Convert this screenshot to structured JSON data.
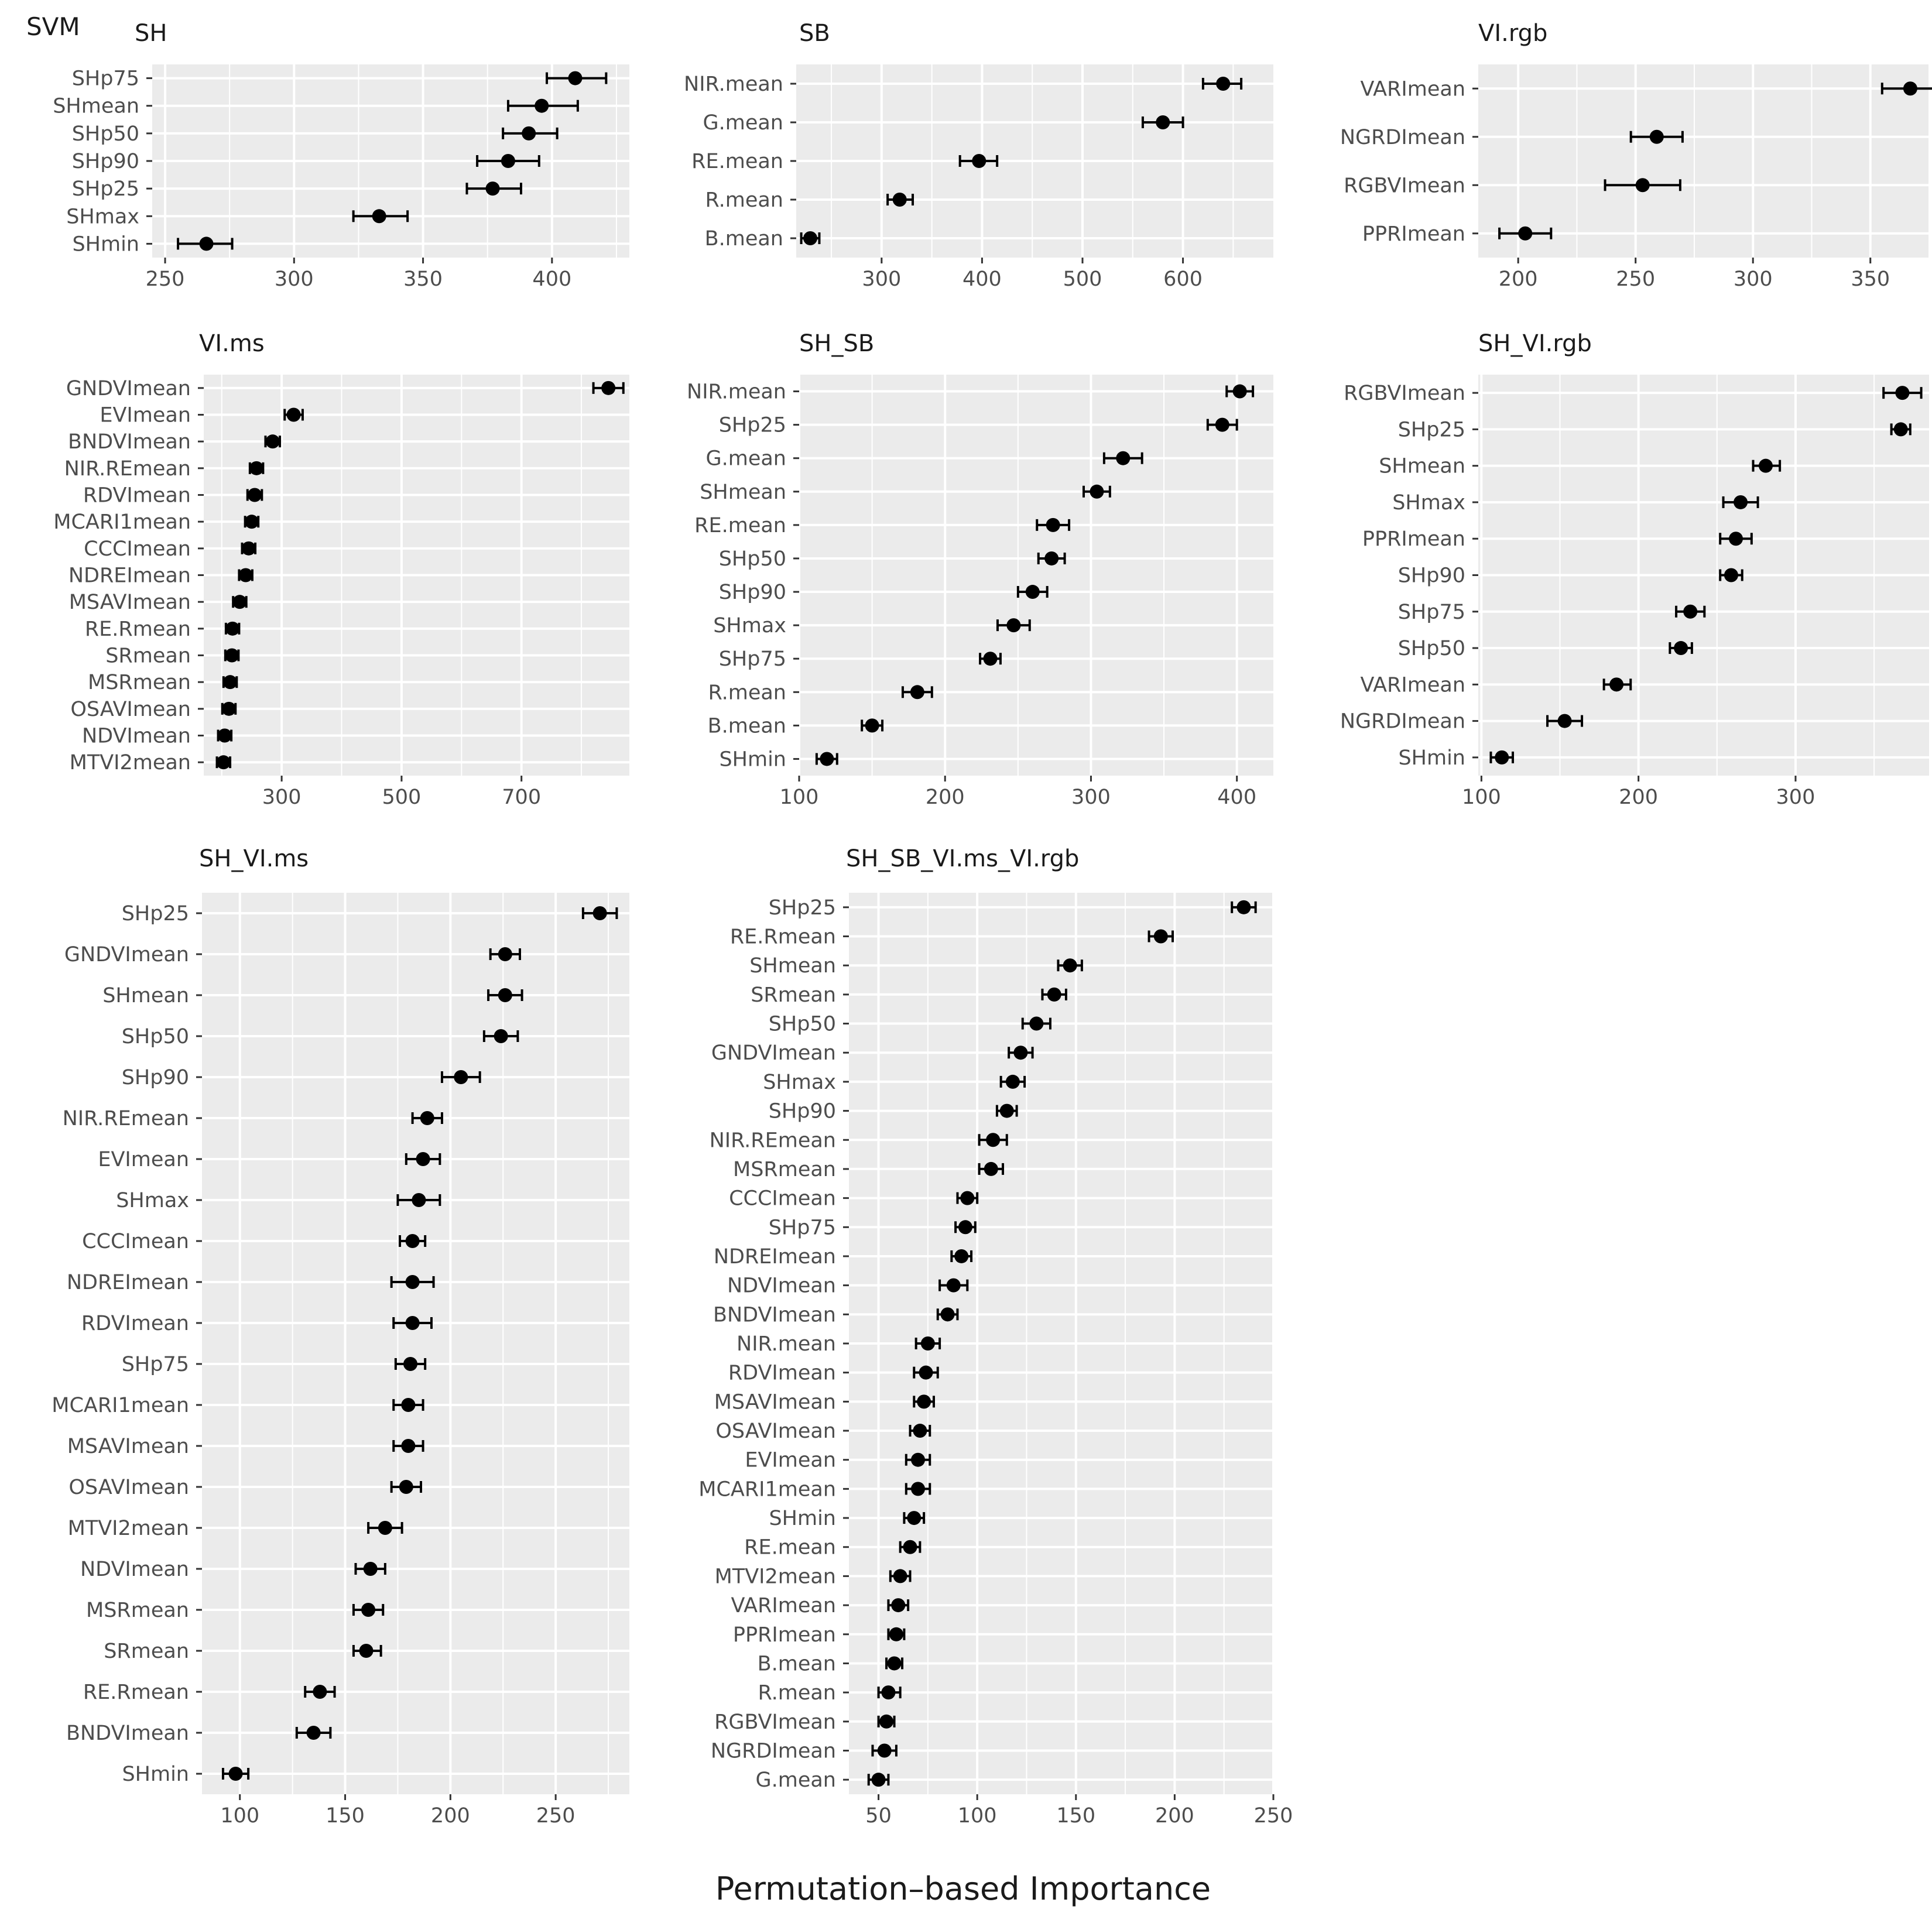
{
  "figure": {
    "model_label": "SVM",
    "xlabel": "Permutation–based Importance"
  },
  "colors": {
    "panel_bg": "#ebebeb",
    "grid": "#ffffff",
    "point": "#000000",
    "axis_text": "#4d4d4d",
    "title_text": "#1a1a1a"
  },
  "chart_data": [
    {
      "type": "scatter",
      "title": "SH",
      "xlim": [
        245,
        430
      ],
      "xticks": [
        250,
        300,
        350,
        400
      ],
      "minor_grid": true,
      "categories": [
        "SHp75",
        "SHmean",
        "SHp50",
        "SHp90",
        "SHp25",
        "SHmax",
        "SHmin"
      ],
      "values": [
        409,
        396,
        391,
        383,
        377,
        333,
        266
      ],
      "error_low": [
        398,
        383,
        381,
        371,
        367,
        323,
        255
      ],
      "error_high": [
        421,
        410,
        402,
        395,
        388,
        344,
        276
      ]
    },
    {
      "type": "scatter",
      "title": "SB",
      "xlim": [
        215,
        690
      ],
      "xticks": [
        300,
        400,
        500,
        600
      ],
      "minor_grid": true,
      "categories": [
        "NIR.mean",
        "G.mean",
        "RE.mean",
        "R.mean",
        "B.mean"
      ],
      "values": [
        640,
        580,
        397,
        318,
        229
      ],
      "error_low": [
        620,
        560,
        378,
        306,
        220
      ],
      "error_high": [
        658,
        600,
        415,
        331,
        238
      ]
    },
    {
      "type": "scatter",
      "title": "VI.rgb",
      "xlim": [
        183,
        375
      ],
      "xticks": [
        200,
        250,
        300,
        350
      ],
      "minor_grid": true,
      "categories": [
        "VARImean",
        "NGRDImean",
        "RGBVImean",
        "PPRImean"
      ],
      "values": [
        367,
        259,
        253,
        203
      ],
      "error_low": [
        355,
        248,
        237,
        192
      ],
      "error_high": [
        379,
        270,
        269,
        214
      ]
    },
    {
      "type": "scatter",
      "title": "VI.ms",
      "xlim": [
        170,
        880
      ],
      "xticks": [
        300,
        500,
        700
      ],
      "minor_grid": true,
      "categories": [
        "GNDVImean",
        "EVImean",
        "BNDVImean",
        "NIR.REmean",
        "RDVImean",
        "MCARI1mean",
        "CCCImean",
        "NDREImean",
        "MSAVImean",
        "RE.Rmean",
        "SRmean",
        "MSRmean",
        "OSAVImean",
        "NDVImean",
        "MTVI2mean"
      ],
      "values": [
        845,
        320,
        285,
        258,
        255,
        250,
        245,
        240,
        230,
        218,
        217,
        214,
        212,
        205,
        203
      ],
      "error_low": [
        820,
        305,
        273,
        247,
        243,
        239,
        234,
        229,
        219,
        207,
        206,
        203,
        201,
        194,
        192
      ],
      "error_high": [
        870,
        335,
        297,
        269,
        267,
        261,
        256,
        251,
        241,
        229,
        228,
        225,
        223,
        216,
        214
      ]
    },
    {
      "type": "scatter",
      "title": "SH_SB",
      "xlim": [
        100,
        425
      ],
      "xticks": [
        100,
        200,
        300,
        400
      ],
      "minor_grid": true,
      "categories": [
        "NIR.mean",
        "SHp25",
        "G.mean",
        "SHmean",
        "RE.mean",
        "SHp50",
        "SHp90",
        "SHmax",
        "SHp75",
        "R.mean",
        "B.mean",
        "SHmin"
      ],
      "values": [
        402,
        390,
        322,
        304,
        274,
        273,
        260,
        247,
        231,
        181,
        150,
        119
      ],
      "error_low": [
        393,
        380,
        309,
        295,
        263,
        264,
        250,
        236,
        224,
        171,
        143,
        112
      ],
      "error_high": [
        411,
        400,
        335,
        313,
        285,
        282,
        270,
        258,
        238,
        191,
        157,
        126
      ]
    },
    {
      "type": "scatter",
      "title": "SH_VI.rgb",
      "xlim": [
        98,
        385
      ],
      "xticks": [
        100,
        200,
        300
      ],
      "minor_grid": true,
      "categories": [
        "RGBVImean",
        "SHp25",
        "SHmean",
        "SHmax",
        "PPRImean",
        "SHp90",
        "SHp75",
        "SHp50",
        "VARImean",
        "NGRDImean",
        "SHmin"
      ],
      "values": [
        368,
        367,
        281,
        265,
        262,
        259,
        233,
        227,
        186,
        153,
        113
      ],
      "error_low": [
        356,
        361,
        273,
        254,
        252,
        252,
        224,
        220,
        178,
        142,
        106
      ],
      "error_high": [
        380,
        373,
        290,
        276,
        272,
        266,
        242,
        234,
        195,
        164,
        120
      ]
    },
    {
      "type": "scatter",
      "title": "SH_VI.ms",
      "xlim": [
        82,
        285
      ],
      "xticks": [
        100,
        150,
        200,
        250
      ],
      "minor_grid": true,
      "categories": [
        "SHp25",
        "GNDVImean",
        "SHmean",
        "SHp50",
        "SHp90",
        "NIR.REmean",
        "EVImean",
        "SHmax",
        "CCCImean",
        "NDREImean",
        "RDVImean",
        "SHp75",
        "MCARI1mean",
        "MSAVImean",
        "OSAVImean",
        "MTVI2mean",
        "NDVImean",
        "MSRmean",
        "SRmean",
        "RE.Rmean",
        "BNDVImean",
        "SHmin"
      ],
      "values": [
        271,
        226,
        226,
        224,
        205,
        189,
        187,
        185,
        182,
        182,
        182,
        181,
        180,
        180,
        179,
        169,
        162,
        161,
        160,
        138,
        135,
        98
      ],
      "error_low": [
        263,
        219,
        218,
        216,
        196,
        182,
        179,
        175,
        176,
        172,
        173,
        174,
        173,
        173,
        172,
        161,
        155,
        154,
        154,
        131,
        127,
        92
      ],
      "error_high": [
        279,
        233,
        234,
        232,
        214,
        196,
        195,
        195,
        188,
        192,
        191,
        188,
        187,
        187,
        186,
        177,
        169,
        168,
        167,
        145,
        143,
        104
      ]
    },
    {
      "type": "scatter",
      "title": "SH_SB_VI.ms_VI.rgb",
      "xlim": [
        35,
        250
      ],
      "xticks": [
        50,
        100,
        150,
        200,
        250
      ],
      "minor_grid": true,
      "categories": [
        "SHp25",
        "RE.Rmean",
        "SHmean",
        "SRmean",
        "SHp50",
        "GNDVImean",
        "SHmax",
        "SHp90",
        "NIR.REmean",
        "MSRmean",
        "CCCImean",
        "SHp75",
        "NDREImean",
        "NDVImean",
        "BNDVImean",
        "NIR.mean",
        "RDVImean",
        "MSAVImean",
        "OSAVImean",
        "EVImean",
        "MCARI1mean",
        "SHmin",
        "RE.mean",
        "MTVI2mean",
        "VARImean",
        "PPRImean",
        "B.mean",
        "R.mean",
        "RGBVImean",
        "NGRDImean",
        "G.mean"
      ],
      "values": [
        235,
        193,
        147,
        139,
        130,
        122,
        118,
        115,
        108,
        107,
        95,
        94,
        92,
        88,
        85,
        75,
        74,
        73,
        71,
        70,
        70,
        68,
        66,
        61,
        60,
        59,
        58,
        55,
        54,
        53,
        50
      ],
      "error_low": [
        229,
        187,
        141,
        133,
        123,
        116,
        112,
        110,
        101,
        101,
        90,
        89,
        87,
        81,
        80,
        69,
        68,
        68,
        66,
        64,
        64,
        63,
        61,
        56,
        55,
        55,
        54,
        50,
        50,
        47,
        45
      ],
      "error_high": [
        241,
        199,
        153,
        145,
        137,
        128,
        124,
        120,
        115,
        113,
        100,
        99,
        97,
        95,
        90,
        81,
        80,
        78,
        76,
        76,
        76,
        73,
        71,
        66,
        65,
        63,
        62,
        61,
        58,
        59,
        55
      ]
    }
  ]
}
